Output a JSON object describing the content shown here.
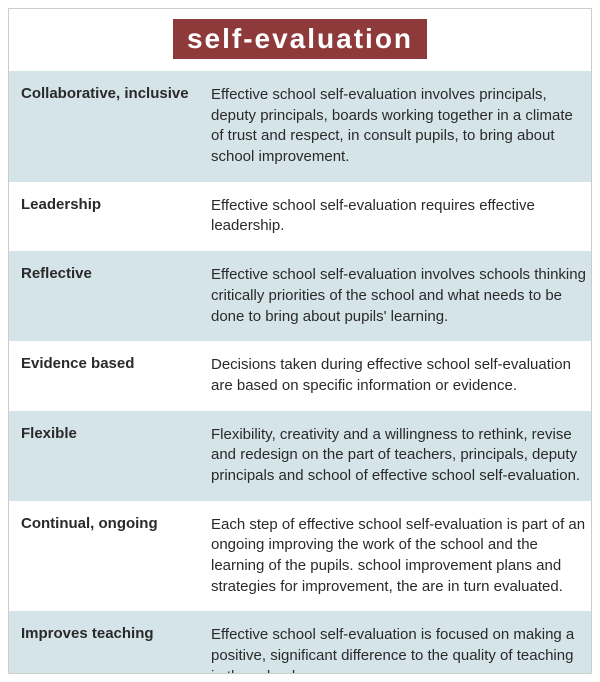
{
  "title": "self-evaluation",
  "title_bg": "#8f3a3a",
  "title_fg": "#ffffff",
  "row_odd_bg": "#d5e4e9",
  "row_even_bg": "#ffffff",
  "text_color": "#2a2a2a",
  "rows": [
    {
      "label": "Collaborative, inclusive",
      "desc": "Effective school self-evaluation involves principals, deputy principals, boards working together in a climate of trust and respect, in consult pupils, to bring about school improvement."
    },
    {
      "label": "Leadership",
      "desc": "Effective school self-evaluation requires effective leadership."
    },
    {
      "label": "Reflective",
      "desc": "Effective school self-evaluation involves schools thinking critically priorities of the school and what needs to be done to bring about pupils' learning."
    },
    {
      "label": "Evidence based",
      "desc": "Decisions taken during effective school self-evaluation are based on specific information or evidence."
    },
    {
      "label": "Flexible",
      "desc": "Flexibility, creativity and a willingness to rethink, revise and redesign on the part of teachers, principals, deputy principals and school of effective school self-evaluation."
    },
    {
      "label": "Continual, ongoing",
      "desc": "Each step of effective school self-evaluation is part of an ongoing improving the work of the school and the learning of the pupils. school improvement plans and strategies for improvement, the are in turn evaluated."
    },
    {
      "label": "Improves teaching",
      "desc": "Effective school self-evaluation is focused on making a positive, significant difference to the quality of teaching in the school."
    }
  ]
}
